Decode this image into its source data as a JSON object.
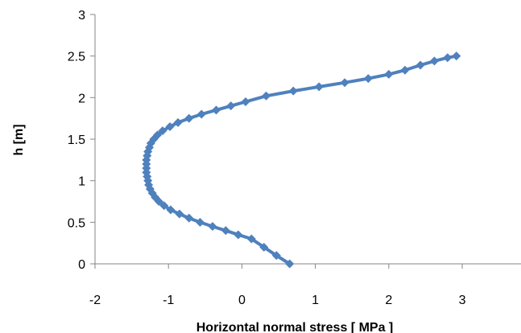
{
  "chart_data": {
    "type": "line",
    "title": "",
    "xlabel": "Horizontal normal stress [ MPa ]",
    "ylabel": "h [m]",
    "xlim": [
      -2,
      3.8
    ],
    "ylim": [
      0,
      3
    ],
    "xticks": [
      -2,
      -1,
      0,
      1,
      2,
      3
    ],
    "yticks": [
      0,
      0.5,
      1,
      1.5,
      2,
      2.5,
      3
    ],
    "xtick_labels": [
      "-2",
      "-1",
      "0",
      "1",
      "2",
      "3"
    ],
    "ytick_labels": [
      "0",
      "0.5",
      "1",
      "1.5",
      "2",
      "2.5",
      "3"
    ],
    "grid": false,
    "legend": "none",
    "series": [
      {
        "color": "#4f81bd",
        "marker": "diamond",
        "points": [
          {
            "x": 0.65,
            "y": 0.0
          },
          {
            "x": 0.47,
            "y": 0.1
          },
          {
            "x": 0.3,
            "y": 0.2
          },
          {
            "x": 0.13,
            "y": 0.3
          },
          {
            "x": -0.05,
            "y": 0.35
          },
          {
            "x": -0.22,
            "y": 0.4
          },
          {
            "x": -0.4,
            "y": 0.45
          },
          {
            "x": -0.57,
            "y": 0.5
          },
          {
            "x": -0.72,
            "y": 0.55
          },
          {
            "x": -0.85,
            "y": 0.6
          },
          {
            "x": -0.97,
            "y": 0.65
          },
          {
            "x": -1.06,
            "y": 0.7
          },
          {
            "x": -1.13,
            "y": 0.75
          },
          {
            "x": -1.18,
            "y": 0.8
          },
          {
            "x": -1.22,
            "y": 0.85
          },
          {
            "x": -1.25,
            "y": 0.9
          },
          {
            "x": -1.27,
            "y": 0.95
          },
          {
            "x": -1.28,
            "y": 1.0
          },
          {
            "x": -1.29,
            "y": 1.05
          },
          {
            "x": -1.3,
            "y": 1.1
          },
          {
            "x": -1.3,
            "y": 1.15
          },
          {
            "x": -1.3,
            "y": 1.2
          },
          {
            "x": -1.3,
            "y": 1.25
          },
          {
            "x": -1.29,
            "y": 1.3
          },
          {
            "x": -1.28,
            "y": 1.35
          },
          {
            "x": -1.26,
            "y": 1.4
          },
          {
            "x": -1.24,
            "y": 1.45
          },
          {
            "x": -1.2,
            "y": 1.5
          },
          {
            "x": -1.15,
            "y": 1.55
          },
          {
            "x": -1.08,
            "y": 1.6
          },
          {
            "x": -0.98,
            "y": 1.65
          },
          {
            "x": -0.87,
            "y": 1.7
          },
          {
            "x": -0.72,
            "y": 1.75
          },
          {
            "x": -0.55,
            "y": 1.8
          },
          {
            "x": -0.35,
            "y": 1.85
          },
          {
            "x": -0.15,
            "y": 1.9
          },
          {
            "x": 0.05,
            "y": 1.95
          },
          {
            "x": 0.33,
            "y": 2.02
          },
          {
            "x": 0.7,
            "y": 2.08
          },
          {
            "x": 1.05,
            "y": 2.13
          },
          {
            "x": 1.4,
            "y": 2.18
          },
          {
            "x": 1.72,
            "y": 2.23
          },
          {
            "x": 2.0,
            "y": 2.28
          },
          {
            "x": 2.22,
            "y": 2.33
          },
          {
            "x": 2.43,
            "y": 2.39
          },
          {
            "x": 2.62,
            "y": 2.44
          },
          {
            "x": 2.8,
            "y": 2.48
          },
          {
            "x": 2.92,
            "y": 2.5
          }
        ]
      }
    ]
  }
}
